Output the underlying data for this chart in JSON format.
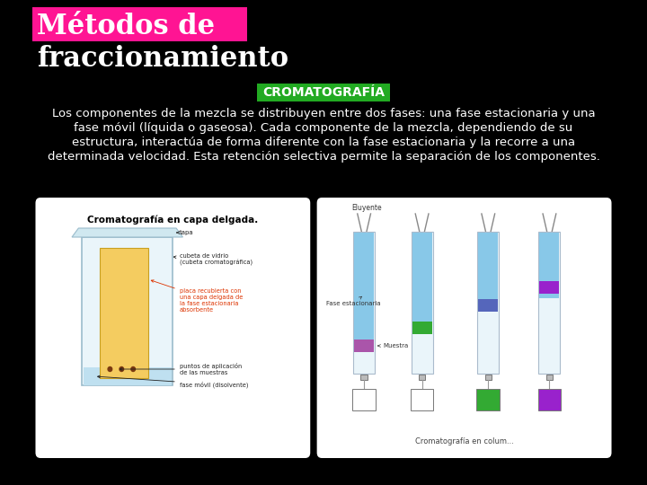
{
  "background_color": "#000000",
  "title_line1": "Métodos de",
  "title_line2": "fraccionamiento",
  "title_bg_color": "#FF1493",
  "title_text_color": "#FFFFFF",
  "title_line1_fontsize": 22,
  "title_line2_fontsize": 22,
  "subtitle": "CROMATOGRAFÍA",
  "subtitle_bg_color": "#22AA22",
  "subtitle_text_color": "#FFFFFF",
  "subtitle_font_size": 10,
  "body_text_lines": [
    "Los componentes de la mezcla se distribuyen entre dos fases: una fase estacionaria y una",
    "fase móvil (líquida o gaseosa). Cada componente de la mezcla, dependiendo de su",
    "estructura, interactúa de forma diferente con la fase estacionaria y la recorre a una",
    "determinada velocidad. Esta retención selectiva permite la separación de los componentes."
  ],
  "body_text_color": "#FFFFFF",
  "body_font_size": 9.5,
  "image1_label": "Cromatografía en capa delgada.",
  "image2_label": "Cromatografía en colum...",
  "panel_bg_color": "#FFFFFF"
}
